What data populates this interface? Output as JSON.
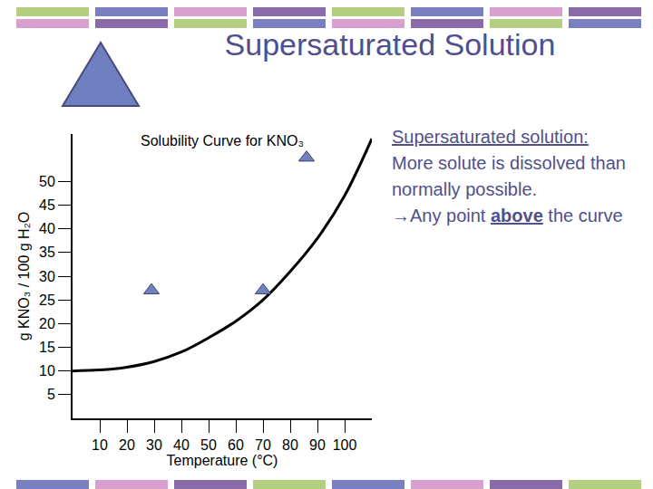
{
  "slide_title": "Supersaturated Solution",
  "side_text": {
    "heading": "Supersaturated solution:",
    "body": "More solute is dissolved than normally possible.",
    "arrow_before": "→Any point ",
    "arrow_emphasis": "above",
    "arrow_after": " the curve"
  },
  "chart_data": {
    "type": "scatter",
    "title": "Solubility Curve for KNO₃",
    "x_label": "Temperature (°C)",
    "y_label": "g KNO₃ / 100 g H₂O",
    "series": [
      {
        "type": "line",
        "color": "#000000",
        "line_style": "solid",
        "x": [
          0,
          10,
          20,
          30,
          40,
          50,
          60,
          70,
          80,
          90,
          100,
          110
        ],
        "values": [
          10,
          10.2,
          10.8,
          12,
          14,
          17,
          20.5,
          25,
          31,
          38,
          47,
          59
        ]
      },
      {
        "type": "scatter",
        "marker": "triangle-up",
        "color": "#7080c0",
        "x": [
          29,
          70,
          86
        ],
        "values": [
          27,
          27,
          55
        ]
      }
    ],
    "xlim": [
      0,
      110
    ],
    "xticks": [
      10,
      20,
      30,
      40,
      50,
      60,
      70,
      80,
      90,
      100
    ],
    "ylim": [
      0,
      60
    ],
    "yticks": [
      5,
      10,
      15,
      20,
      25,
      30,
      35,
      40,
      45,
      50
    ],
    "grid": false
  }
}
